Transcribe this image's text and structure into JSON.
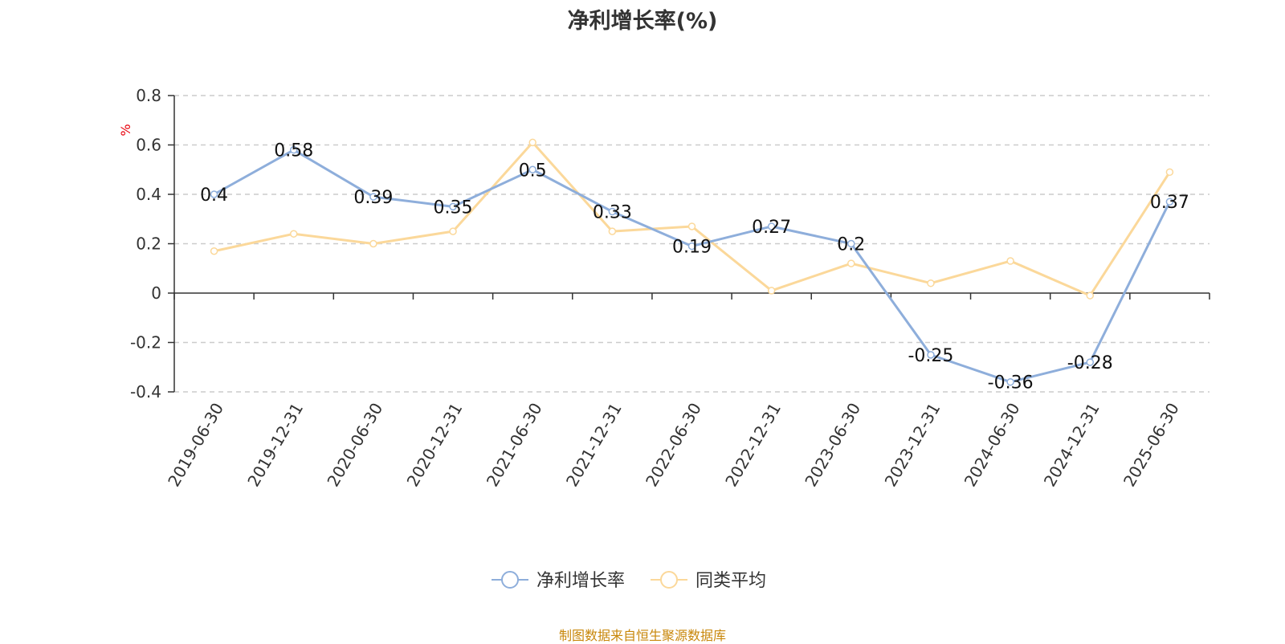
{
  "chart_data": {
    "type": "line",
    "title": "净利增长率(%)",
    "ylabel": "%",
    "xlabel": "",
    "ylim": [
      -0.4,
      0.8
    ],
    "yticks": [
      0.8,
      0.6,
      0.4,
      0.2,
      0,
      -0.2,
      -0.4
    ],
    "ytick_labels": [
      "0.8",
      "0.6",
      "0.4",
      "0.2",
      "0",
      "-0.2",
      "-0.4"
    ],
    "grid": true,
    "legend_position": "bottom",
    "categories": [
      "2019-06-30",
      "2019-12-31",
      "2020-06-30",
      "2020-12-31",
      "2021-06-30",
      "2021-12-31",
      "2022-06-30",
      "2022-12-31",
      "2023-06-30",
      "2023-12-31",
      "2024-06-30",
      "2024-12-31",
      "2025-06-30"
    ],
    "series": [
      {
        "name": "净利增长率",
        "color": "#8eaedb",
        "values": [
          0.4,
          0.58,
          0.39,
          0.35,
          0.5,
          0.33,
          0.19,
          0.27,
          0.2,
          -0.25,
          -0.36,
          -0.28,
          0.37
        ],
        "labels": [
          "0.4",
          "0.58",
          "0.39",
          "0.35",
          "0.5",
          "0.33",
          "0.19",
          "0.27",
          "0.2",
          "-0.25",
          "-0.36",
          "-0.28",
          "0.37"
        ]
      },
      {
        "name": "同类平均",
        "color": "#fbd89a",
        "values": [
          0.17,
          0.24,
          0.2,
          0.25,
          0.61,
          0.25,
          0.27,
          0.01,
          0.12,
          0.04,
          0.13,
          -0.01,
          0.49
        ]
      }
    ],
    "source": "制图数据来自恒生聚源数据库"
  }
}
